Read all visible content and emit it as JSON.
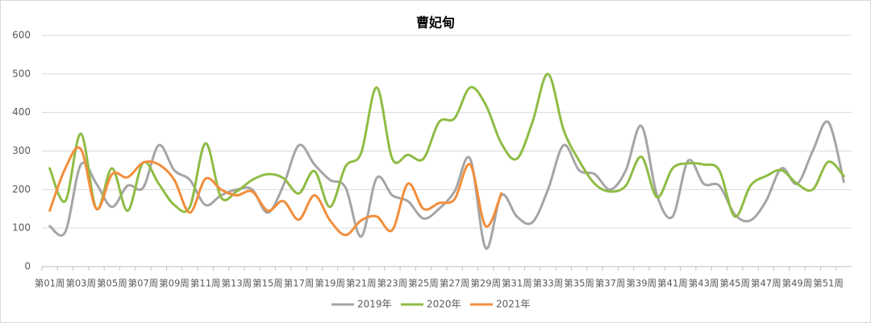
{
  "chart_data": {
    "type": "line",
    "title": "曹妃甸",
    "categories": [
      "第01周",
      null,
      "第03周",
      null,
      "第05周",
      null,
      "第07周",
      null,
      "第09周",
      null,
      "第11周",
      null,
      "第13周",
      null,
      "第15周",
      null,
      "第17周",
      null,
      "第19周",
      null,
      "第21周",
      null,
      "第23周",
      null,
      "第25周",
      null,
      "第27周",
      null,
      "第29周",
      null,
      "第31周",
      null,
      "第33周",
      null,
      "第35周",
      null,
      "第37周",
      null,
      "第39周",
      null,
      "第41周",
      null,
      "第43周",
      null,
      "第45周",
      null,
      "第47周",
      null,
      "第49周",
      null,
      "第51周",
      null
    ],
    "series": [
      {
        "name": "2019年",
        "color": "#a5a5a5",
        "values": [
          105,
          90,
          265,
          215,
          155,
          210,
          205,
          315,
          250,
          225,
          160,
          185,
          200,
          200,
          140,
          210,
          315,
          265,
          225,
          205,
          78,
          230,
          185,
          170,
          125,
          150,
          195,
          280,
          48,
          185,
          130,
          115,
          200,
          315,
          250,
          240,
          200,
          250,
          365,
          185,
          130,
          275,
          215,
          210,
          135,
          120,
          170,
          255,
          215,
          300,
          375,
          220
        ]
      },
      {
        "name": "2020年",
        "color": "#8fbc45",
        "values": [
          255,
          170,
          345,
          150,
          255,
          145,
          270,
          215,
          160,
          155,
          320,
          180,
          195,
          225,
          240,
          230,
          190,
          248,
          155,
          260,
          295,
          465,
          280,
          290,
          280,
          375,
          385,
          465,
          420,
          320,
          280,
          375,
          500,
          355,
          275,
          215,
          195,
          210,
          285,
          180,
          255,
          268,
          265,
          250,
          130,
          210,
          235,
          250,
          215,
          200,
          272,
          235
        ]
      },
      {
        "name": "2021年",
        "color": "#f28e3c",
        "values": [
          145,
          255,
          305,
          150,
          240,
          232,
          270,
          265,
          225,
          140,
          228,
          200,
          185,
          195,
          145,
          170,
          122,
          185,
          120,
          82,
          120,
          130,
          95,
          215,
          150,
          165,
          175,
          265,
          105,
          190,
          null,
          null,
          null,
          null,
          null,
          null,
          null,
          null,
          null,
          null,
          null,
          null,
          null,
          null,
          null,
          null,
          null,
          null,
          null,
          null,
          null,
          null
        ]
      }
    ],
    "ylim": [
      0,
      600
    ],
    "yticks": [
      0,
      100,
      200,
      300,
      400,
      500,
      600
    ],
    "grid": true,
    "legend": "bottom"
  }
}
